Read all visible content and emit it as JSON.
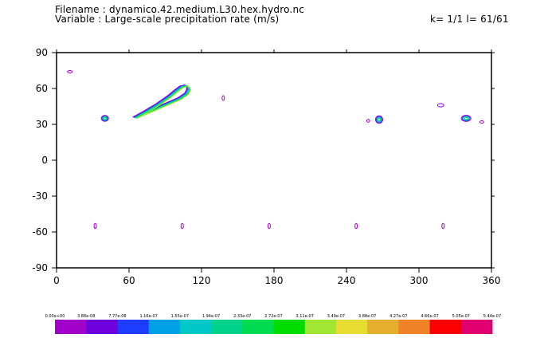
{
  "header": {
    "filename_line": "Filename : dynamico.42.medium.L30.hex.hydro.nc",
    "variable_line": "Variable : Large-scale precipitation rate (m/s)",
    "level_line": "k= 1/1 l= 61/61"
  },
  "chart_data": {
    "type": "contour",
    "title": "",
    "xlabel": "",
    "ylabel": "",
    "xlim": [
      0,
      360
    ],
    "ylim": [
      -90,
      90
    ],
    "x_ticks": [
      0,
      60,
      120,
      180,
      240,
      300,
      360
    ],
    "y_ticks": [
      90,
      60,
      30,
      0,
      -30,
      -60,
      -90
    ],
    "colorbar": {
      "labels": [
        "0.00e+00",
        "3.88e-08",
        "7.77e-08",
        "1.16e-07",
        "1.55e-07",
        "1.94e-07",
        "2.33e-07",
        "2.72e-07",
        "3.11e-07",
        "3.49e-07",
        "3.88e-07",
        "4.27e-07",
        "4.66e-07",
        "5.05e-07",
        "5.44e-07"
      ],
      "colors": [
        "#a000c8",
        "#6e00dc",
        "#1e3cff",
        "#00a0e6",
        "#00c8c8",
        "#00d28c",
        "#00dc50",
        "#00dc00",
        "#a0e632",
        "#e6dc32",
        "#e6af2d",
        "#f08228",
        "#fa0000",
        "#e00070"
      ]
    },
    "features": [
      {
        "kind": "contour",
        "lon": 11,
        "lat": 74,
        "rx": 2.0,
        "ry": 0.7,
        "levels": 1
      },
      {
        "kind": "contour",
        "lon": 40,
        "lat": 35,
        "rx": 3.0,
        "ry": 2.5,
        "levels": 4
      },
      {
        "kind": "contour",
        "lon": 138,
        "lat": 52,
        "rx": 0.6,
        "ry": 2.0,
        "levels": 1
      },
      {
        "kind": "contour",
        "lon": 258,
        "lat": 33,
        "rx": 1.2,
        "ry": 1.2,
        "levels": 1
      },
      {
        "kind": "contour",
        "lon": 267,
        "lat": 34,
        "rx": 3.0,
        "ry": 3.2,
        "levels": 4
      },
      {
        "kind": "contour",
        "lon": 318,
        "lat": 46,
        "rx": 2.6,
        "ry": 1.4,
        "levels": 1
      },
      {
        "kind": "contour",
        "lon": 339,
        "lat": 35,
        "rx": 4.0,
        "ry": 2.6,
        "levels": 4
      },
      {
        "kind": "contour",
        "lon": 352,
        "lat": 32,
        "rx": 1.6,
        "ry": 1.0,
        "levels": 1
      },
      {
        "kind": "contour",
        "lon": 32,
        "lat": -55,
        "rx": 0.5,
        "ry": 2.2,
        "levels": 1
      },
      {
        "kind": "contour",
        "lon": 104,
        "lat": -55,
        "rx": 0.5,
        "ry": 2.2,
        "levels": 1
      },
      {
        "kind": "contour",
        "lon": 176,
        "lat": -55,
        "rx": 0.5,
        "ry": 2.2,
        "levels": 1
      },
      {
        "kind": "contour",
        "lon": 248,
        "lat": -55,
        "rx": 0.5,
        "ry": 2.2,
        "levels": 1
      },
      {
        "kind": "contour",
        "lon": 320,
        "lat": -55,
        "rx": 0.5,
        "ry": 2.2,
        "levels": 1
      }
    ],
    "band": {
      "points": [
        [
          63,
          36
        ],
        [
          72,
          41
        ],
        [
          82,
          47
        ],
        [
          92,
          54
        ],
        [
          98,
          59
        ],
        [
          102,
          62
        ],
        [
          106,
          63
        ],
        [
          108,
          60
        ],
        [
          106,
          56
        ],
        [
          100,
          52
        ]
      ],
      "levels": 5
    }
  }
}
